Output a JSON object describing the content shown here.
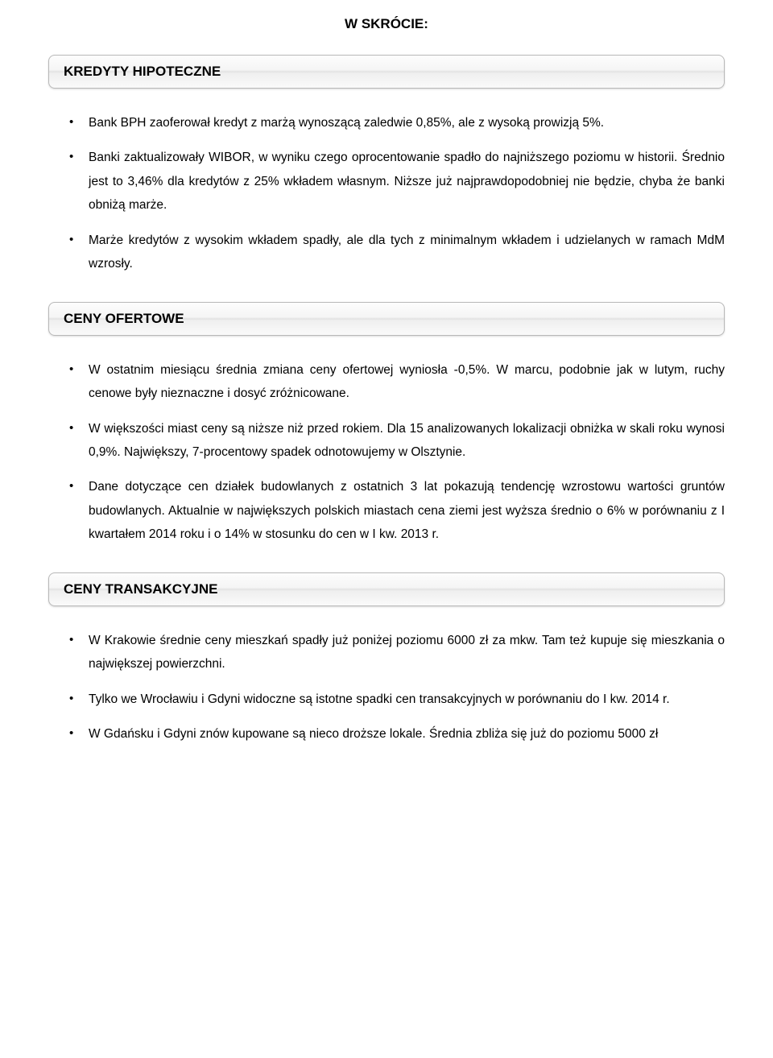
{
  "page": {
    "title": "W SKRÓCIE:"
  },
  "sections": {
    "s1": {
      "header": "KREDYTY HIPOTECZNE",
      "items": {
        "i0": "Bank BPH zaoferował kredyt z marżą wynoszącą zaledwie 0,85%, ale z wysoką prowizją 5%.",
        "i1": "Banki zaktualizowały WIBOR, w wyniku czego oprocentowanie spadło do najniższego poziomu w historii. Średnio jest to 3,46% dla kredytów z 25% wkładem własnym. Niższe już najprawdopodobniej nie będzie, chyba że banki obniżą marże.",
        "i2": "Marże kredytów z wysokim wkładem spadły, ale dla tych z minimalnym wkładem i udzielanych w ramach MdM wzrosły."
      }
    },
    "s2": {
      "header": "CENY OFERTOWE",
      "items": {
        "i0": "W ostatnim miesiącu średnia zmiana ceny ofertowej wyniosła -0,5%. W marcu, podobnie jak w lutym, ruchy cenowe były nieznaczne i dosyć zróżnicowane.",
        "i1": "W większości miast ceny są niższe niż przed rokiem. Dla 15 analizowanych lokalizacji obniżka w skali roku wynosi 0,9%. Największy, 7-procentowy spadek odnotowujemy w Olsztynie.",
        "i2": "Dane dotyczące cen działek budowlanych z ostatnich 3 lat pokazują tendencję wzrostowu wartości gruntów budowlanych. Aktualnie w największych polskich miastach cena ziemi jest wyższa średnio o 6% w porównaniu z I kwartałem 2014 roku i o 14% w stosunku do cen w I kw. 2013 r."
      }
    },
    "s3": {
      "header": "CENY TRANSAKCYJNE",
      "items": {
        "i0": "W Krakowie średnie ceny mieszkań spadły już poniżej poziomu 6000 zł za mkw. Tam też kupuje się mieszkania o największej powierzchni.",
        "i1": "Tylko we Wrocławiu i Gdyni widoczne są istotne spadki cen transakcyjnych w porównaniu do I kw. 2014 r.",
        "i2": "W Gdańsku i Gdyni znów kupowane są nieco droższe lokale. Średnia zbliża się już do poziomu 5000 zł"
      }
    }
  },
  "styles": {
    "background_color": "#ffffff",
    "text_color": "#000000",
    "header_gradient_top": "#fdfdfd",
    "header_gradient_bottom": "#e2e2e2",
    "header_border_color": "#b8b8b8",
    "header_border_radius": 8,
    "title_fontsize": 17,
    "header_fontsize": 17,
    "body_fontsize": 15.5,
    "font_family": "Verdana"
  }
}
